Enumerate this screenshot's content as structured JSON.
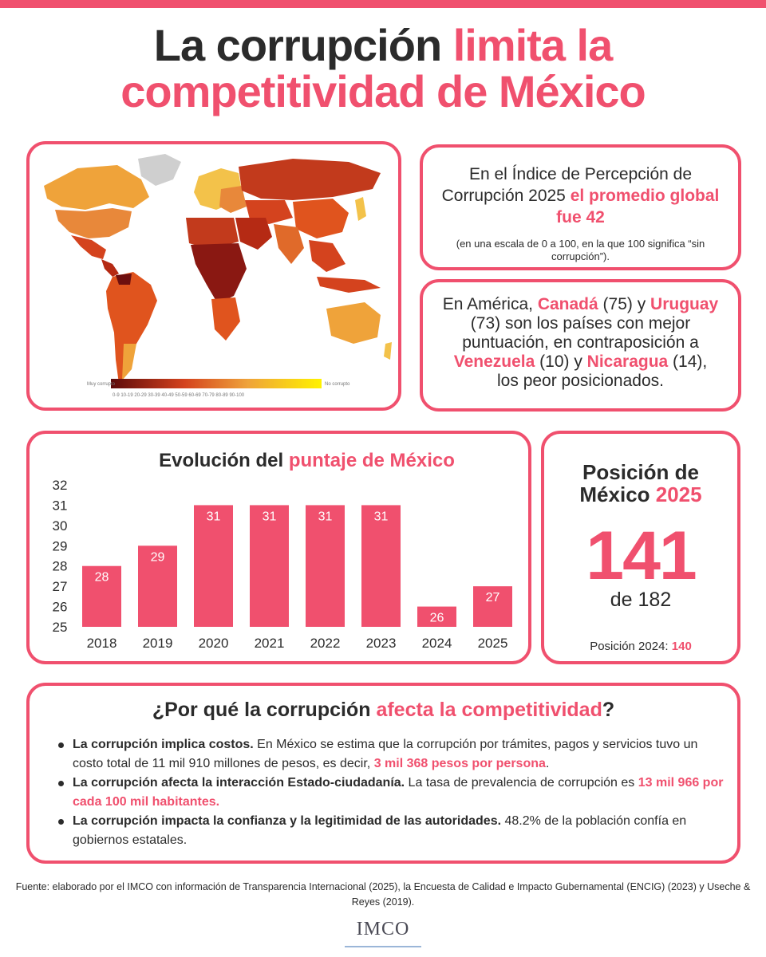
{
  "header": {
    "title_part1": "La corrupción ",
    "title_highlight1": "limita la",
    "title_highlight2": "competitividad de México"
  },
  "map": {
    "legend_low_label": "Muy corrupto",
    "legend_high_label": "No corrupto",
    "legend_ticks": "0-9  10-19  20-29  30-39  40-49  50-59  60-69  70-79  80-89  90-100",
    "colors": {
      "low": "#5c0a0a",
      "mid": "#e0541e",
      "high": "#f5c542",
      "top": "#fff200",
      "nodata": "#cfcfcf"
    }
  },
  "info_global": {
    "text_before": "En el Índice de Percepción de Corrupción 2025 ",
    "highlight": "el promedio global fue 42",
    "note": "(en una escala de 0 a 100, en la que 100 significa “sin corrupción”)."
  },
  "info_america": {
    "t1": "En América, ",
    "canada": "Canadá",
    "t2": " (75) y ",
    "uruguay": "Uruguay",
    "t3": " (73) son los países con mejor puntuación, en contraposición a ",
    "venezuela": "Venezuela",
    "t4": " (10) y ",
    "nicaragua": "Nicaragua",
    "t5": " (14), los peor posicionados."
  },
  "chart_data": {
    "type": "bar",
    "title_part1": "Evolución del ",
    "title_highlight": "puntaje de México",
    "categories": [
      "2018",
      "2019",
      "2020",
      "2021",
      "2022",
      "2023",
      "2024",
      "2025"
    ],
    "values": [
      28,
      29,
      31,
      31,
      31,
      31,
      26,
      27
    ],
    "ylim": [
      25,
      32
    ],
    "yticks": [
      25,
      26,
      27,
      28,
      29,
      30,
      31,
      32
    ],
    "grid": false,
    "bar_color": "#f0506e"
  },
  "position": {
    "title_line1": "Posición de",
    "title_line2_a": "México ",
    "title_line2_b": "2025",
    "rank": "141",
    "of": "de 182",
    "prev_label": "Posición 2024: ",
    "prev_value": "140"
  },
  "why": {
    "title_part1": "¿Por qué la corrupción ",
    "title_highlight": "afecta la competitividad",
    "title_end": "?",
    "items": [
      {
        "bold": "La corrupción implica costos.",
        "text": " En México se estima que la corrupción por trámites, pagos y servicios tuvo un costo total de 11 mil 910 millones de pesos, es decir, ",
        "highlight": "3 mil 368 pesos por persona",
        "end": "."
      },
      {
        "bold": "La corrupción afecta la interacción Estado-ciudadanía.",
        "text": " La tasa de prevalencia de corrupción es ",
        "highlight": "13 mil 966 por cada 100 mil habitantes.",
        "end": ""
      },
      {
        "bold": "La corrupción impacta la confianza y la legitimidad de las autoridades.",
        "text": " 48.2% de la población confía en gobiernos estatales.",
        "highlight": "",
        "end": ""
      }
    ]
  },
  "footer": {
    "source": "Fuente: elaborado por el IMCO con información de Transparencia Internacional (2025), la Encuesta de Calidad e Impacto Gubernamental (ENCIG) (2023) y Useche & Reyes (2019).",
    "logo": "IMCO"
  }
}
